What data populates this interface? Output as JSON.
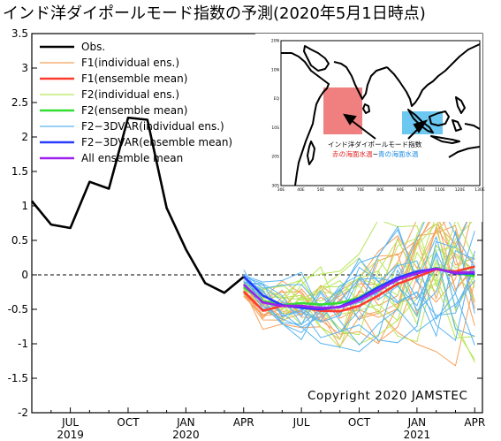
{
  "chart_data": {
    "type": "line",
    "title": "インド洋ダイポールモード指数の予測(2020年5月1日時点)",
    "xlabel": "",
    "ylabel": "",
    "ylim": [
      -2,
      3.5
    ],
    "yticks": [
      "3.5",
      "3",
      "2.5",
      "2",
      "1.5",
      "1",
      "0.5",
      "0",
      "-0.5",
      "-1",
      "-1.5",
      "-2"
    ],
    "xticks": [
      {
        "month": "JUL",
        "year": "2019",
        "t": 2
      },
      {
        "month": "OCT",
        "year": "",
        "t": 5
      },
      {
        "month": "JAN",
        "year": "2020",
        "t": 8
      },
      {
        "month": "APR",
        "year": "",
        "t": 11
      },
      {
        "month": "JUL",
        "year": "",
        "t": 14
      },
      {
        "month": "OCT",
        "year": "",
        "t": 17
      },
      {
        "month": "JAN",
        "year": "2021",
        "t": 20
      },
      {
        "month": "APR",
        "year": "",
        "t": 23
      }
    ],
    "x_range_months": [
      0,
      23.4
    ],
    "grid": false,
    "zero_line": "dashed",
    "legend_position": "top-left",
    "legend": [
      {
        "label": "Obs.",
        "color": "#000000",
        "width": 2.4
      },
      {
        "label": "F1(individual ens.)",
        "color": "#f5a05a",
        "width": 1.2
      },
      {
        "label": "F1(ensemble mean)",
        "color": "#ff3b2f",
        "width": 2.4
      },
      {
        "label": "F2(individual ens.)",
        "color": "#b8e65a",
        "width": 1.2
      },
      {
        "label": "F2(ensemble mean)",
        "color": "#33dd33",
        "width": 2.4
      },
      {
        "label": "F2−3DVAR(individual ens.)",
        "color": "#5ab4f0",
        "width": 1.2
      },
      {
        "label": "F2−3DVAR(ensemble mean)",
        "color": "#2a3cff",
        "width": 2.4
      },
      {
        "label": "All ensemble mean",
        "color": "#a020f0",
        "width": 2.4
      }
    ],
    "series": [
      {
        "name": "Obs.",
        "x": [
          0,
          1,
          2,
          3,
          4,
          5,
          6,
          7,
          8,
          9,
          10,
          11
        ],
        "values": [
          1.07,
          0.73,
          0.68,
          1.35,
          1.25,
          2.28,
          2.25,
          0.97,
          0.37,
          -0.12,
          -0.26,
          -0.03
        ]
      },
      {
        "name": "F1(ensemble mean)",
        "x": [
          11,
          12,
          13,
          14,
          15,
          16,
          17,
          18,
          19,
          20,
          21,
          22,
          23
        ],
        "values": [
          -0.24,
          -0.52,
          -0.45,
          -0.47,
          -0.52,
          -0.53,
          -0.45,
          -0.3,
          -0.13,
          -0.03,
          0.08,
          0.05,
          0.12
        ]
      },
      {
        "name": "F2(ensemble mean)",
        "x": [
          11,
          12,
          13,
          14,
          15,
          16,
          17,
          18,
          19,
          20,
          21,
          22,
          23
        ],
        "values": [
          -0.18,
          -0.38,
          -0.44,
          -0.41,
          -0.43,
          -0.41,
          -0.33,
          -0.17,
          -0.05,
          0.03,
          0.1,
          0.03,
          -0.02
        ]
      },
      {
        "name": "F2−3DVAR(ensemble mean)",
        "x": [
          11,
          12,
          13,
          14,
          15,
          16,
          17,
          18,
          19,
          20,
          21,
          22,
          23
        ],
        "values": [
          -0.02,
          -0.3,
          -0.44,
          -0.48,
          -0.5,
          -0.46,
          -0.34,
          -0.18,
          -0.04,
          0.05,
          0.09,
          0.02,
          0.02
        ]
      },
      {
        "name": "All ensemble mean",
        "x": [
          11,
          12,
          13,
          14,
          15,
          16,
          17,
          18,
          19,
          20,
          21,
          22,
          23
        ],
        "values": [
          -0.14,
          -0.4,
          -0.45,
          -0.45,
          -0.48,
          -0.47,
          -0.37,
          -0.22,
          -0.07,
          0.02,
          0.09,
          0.03,
          0.04
        ]
      }
    ],
    "annotation": "Copyright 2020 JAMSTEC"
  },
  "inset": {
    "label_line1": "インド洋ダイポールモード指数",
    "label_line2_red": "赤の海面水温",
    "label_line2_sep": "−",
    "label_line2_blue": "青の海面水温",
    "west_box_color": "#f08080",
    "east_box_color": "#6cc8f0",
    "lon_ticks": [
      "30E",
      "40E",
      "50E",
      "60E",
      "70E",
      "80E",
      "90E",
      "100E",
      "110E",
      "120E",
      "130E"
    ],
    "lat_ticks": [
      "20N",
      "10N",
      "EQ",
      "10S",
      "20S",
      "30S"
    ]
  }
}
